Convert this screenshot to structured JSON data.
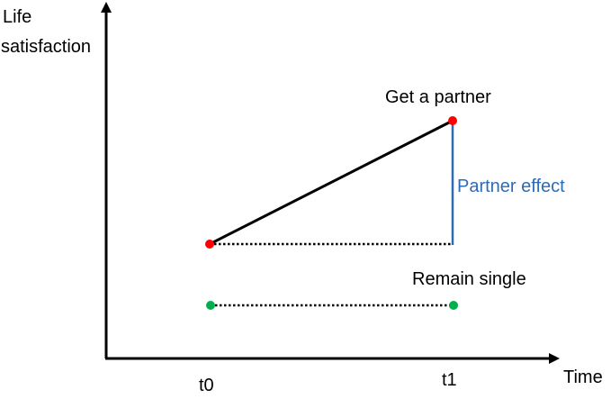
{
  "axes": {
    "y_label_line1": "Life",
    "y_label_line2": "satisfaction",
    "x_label": "Time",
    "x_ticks": [
      "t0",
      "t1"
    ]
  },
  "annotations": {
    "partner_label": "Get a partner",
    "effect_label": "Partner effect",
    "single_label": "Remain single"
  },
  "colors": {
    "axis": "#000000",
    "partner_point": "#ff0000",
    "single_point": "#00b050",
    "effect_line": "#2e6bb5",
    "effect_text": "#2e6bb5"
  }
}
